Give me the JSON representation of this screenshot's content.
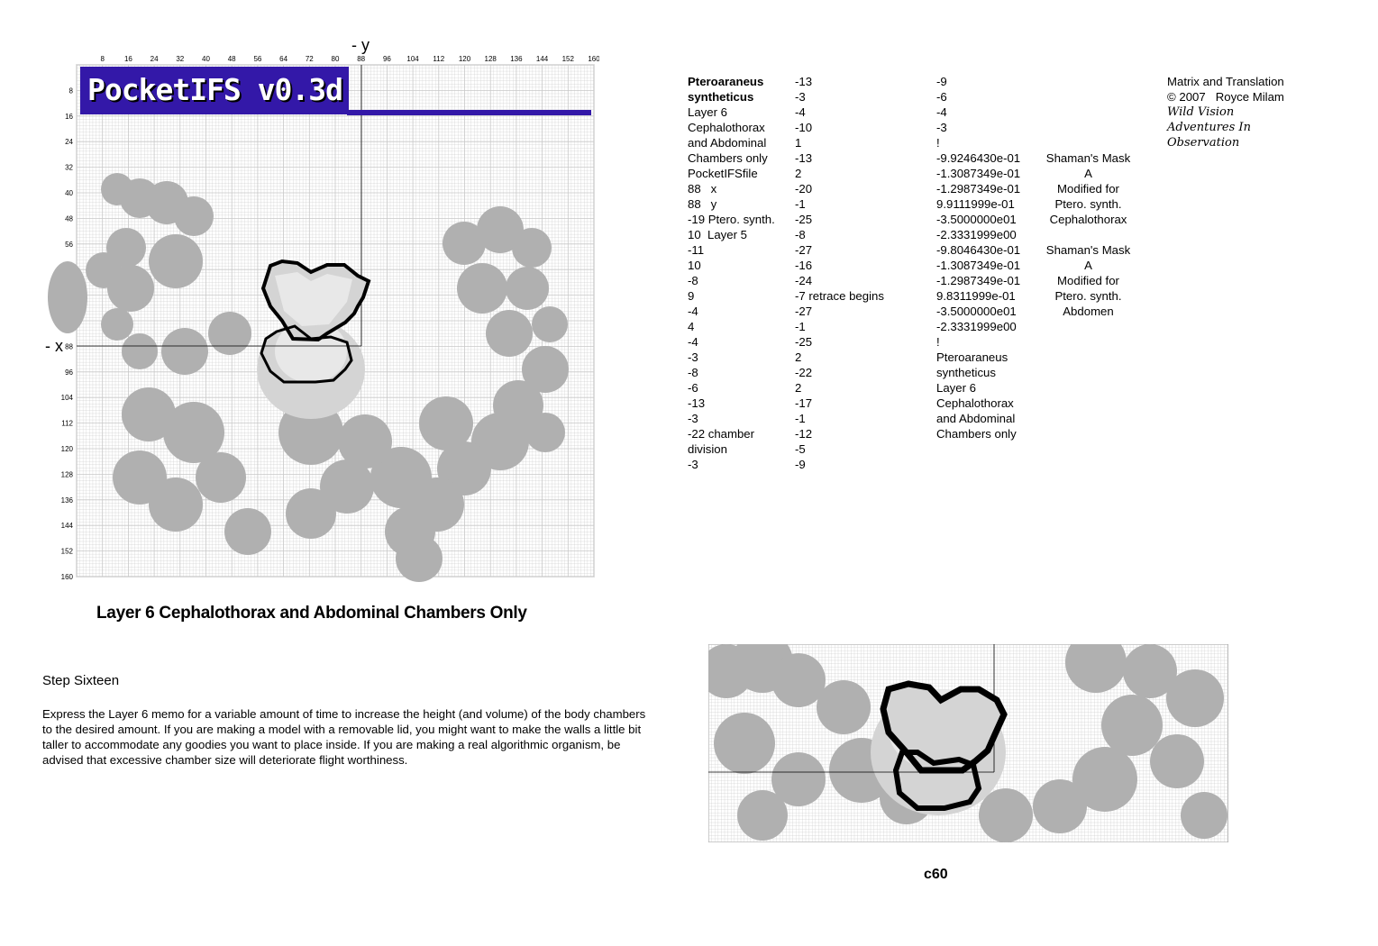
{
  "banner": {
    "title": "PocketIFS v0.3d"
  },
  "axes": {
    "y_label": "- y",
    "x_label": "- x",
    "x_ticks": [
      "8",
      "16",
      "24",
      "32",
      "40",
      "48",
      "56",
      "64",
      "72",
      "80",
      "88",
      "96",
      "104",
      "112",
      "120",
      "128",
      "136",
      "144",
      "152",
      "160"
    ],
    "y_ticks": [
      "8",
      "16",
      "24",
      "32",
      "40",
      "48",
      "56",
      "64",
      "72",
      "80",
      "88",
      "96",
      "104",
      "112",
      "120",
      "128",
      "136",
      "144",
      "152",
      "160"
    ]
  },
  "caption": "Layer 6  Cephalothorax and Abdominal Chambers Only",
  "step": {
    "title": "Step Sixteen",
    "body": "Express the Layer 6 memo for a variable amount of time to increase the height (and volume) of the body chambers to the desired amount.  If you are making a model with a removable lid, you might want to make the walls a little bit taller to accommodate any goodies you want to place inside.  If you are making a real algorithmic organism, be advised that excessive chamber size will deteriorate flight worthiness."
  },
  "columns": {
    "col1": [
      "Pteroaraneus",
      "syntheticus",
      "Layer 6",
      "Cephalothorax",
      "and Abdominal",
      "Chambers only",
      "PocketIFSfile",
      "88   x",
      "88   y",
      "-19 Ptero. synth.",
      "10  Layer 5",
      "-11",
      "10",
      "-8",
      "9",
      "-4",
      "4",
      "-4",
      "-3",
      "-8",
      "-6",
      "-13",
      "-3",
      "-22 chamber",
      "division",
      "-3"
    ],
    "col2": [
      "-13",
      "-3",
      "-4",
      "-10",
      "1",
      "-13",
      "2",
      "-20",
      "-1",
      "-25",
      "-8",
      "-27",
      "-16",
      "-24",
      "-7 retrace begins",
      "-27",
      "-1",
      "-25",
      "2",
      "-22",
      "2",
      "-17",
      "-1",
      "-12",
      "-5",
      "-9"
    ],
    "col3": [
      "-9",
      "-6",
      "-4",
      "-3",
      "!",
      "-9.9246430e-01",
      "-1.3087349e-01",
      "-1.2987349e-01",
      "9.9111999e-01",
      "-3.5000000e01",
      "-2.3331999e00",
      "-9.8046430e-01",
      "-1.3087349e-01",
      "-1.2987349e-01",
      "9.8311999e-01",
      "-3.5000000e01",
      "-2.3331999e00",
      "!",
      "Pteroaraneus",
      "syntheticus",
      "Layer 6",
      "Cephalothorax",
      "and Abdominal",
      "Chambers only"
    ],
    "col4": [
      "",
      "",
      "",
      "",
      "",
      "Shaman's Mask",
      "A",
      "Modified for",
      "Ptero. synth.",
      "Cephalothorax",
      "",
      "Shaman's Mask",
      "A",
      "Modified for",
      "Ptero. synth.",
      "Abdomen"
    ],
    "col5": [
      "Matrix and Translation",
      "© 2007   Royce Milam"
    ],
    "col5_script": [
      "Wild Vision",
      "Adventures In",
      "Observation"
    ]
  },
  "page_number": "c60",
  "colors": {
    "banner": "#3318a8",
    "pattern": "#b0b0b0",
    "pattern_light": "#d4d4d4",
    "pattern_lighter": "#e8e8e8",
    "outline": "#000000",
    "grid": "#c8c8c8"
  }
}
